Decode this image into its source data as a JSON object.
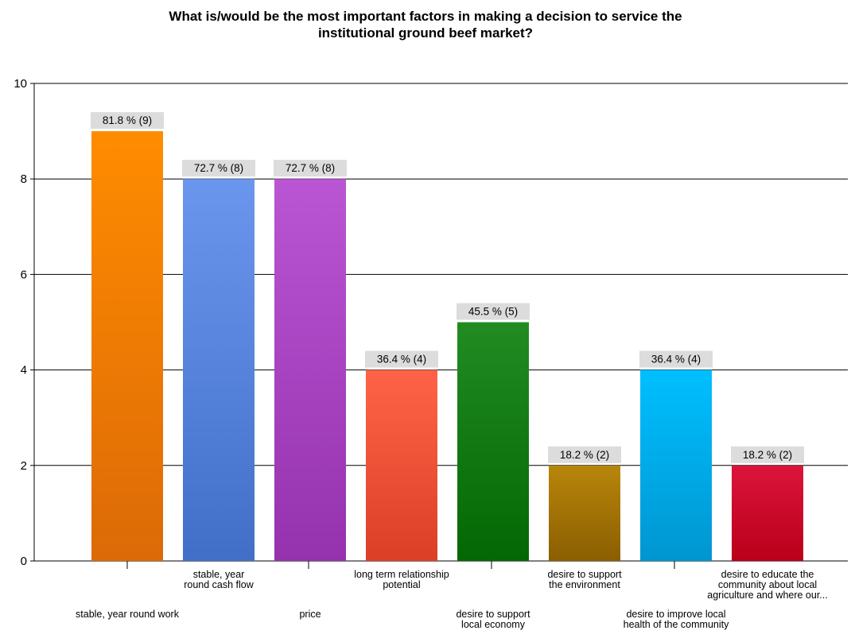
{
  "chart_data": {
    "type": "bar",
    "title_lines": [
      "What is/would be the most important factors in making a decision to service the",
      "institutional ground beef market?"
    ],
    "xlabel": "",
    "ylabel": "",
    "ylim": [
      0,
      10
    ],
    "yticks": [
      0,
      2,
      4,
      6,
      8,
      10
    ],
    "grid": true,
    "legend": "none",
    "categories": [
      [
        "stable, year round work"
      ],
      [
        "stable, year",
        "round cash flow"
      ],
      [
        "price"
      ],
      [
        "long term relationship",
        "potential"
      ],
      [
        "desire to support",
        "local economy"
      ],
      [
        "desire to support",
        "the environment"
      ],
      [
        "desire to improve local",
        "health of the community"
      ],
      [
        "desire to educate the",
        "community about local",
        "agriculture and where our..."
      ]
    ],
    "values": [
      9,
      8,
      8,
      4,
      5,
      2,
      4,
      2
    ],
    "data_labels": [
      "81.8 % (9)",
      "72.7 % (8)",
      "72.7 % (8)",
      "36.4 % (4)",
      "45.5 % (5)",
      "18.2 % (2)",
      "36.4 % (4)",
      "18.2 % (2)"
    ],
    "colors": [
      [
        "#ff8c00",
        "#dc6a07"
      ],
      [
        "#6b96ee",
        "#416fc8"
      ],
      [
        "#ba55d3",
        "#9532ad"
      ],
      [
        "#ff6347",
        "#db4027"
      ],
      [
        "#228b22",
        "#036803"
      ],
      [
        "#b8860b",
        "#8b5e00"
      ],
      [
        "#00bfff",
        "#0096d0"
      ],
      [
        "#dc143c",
        "#b90019"
      ]
    ]
  }
}
